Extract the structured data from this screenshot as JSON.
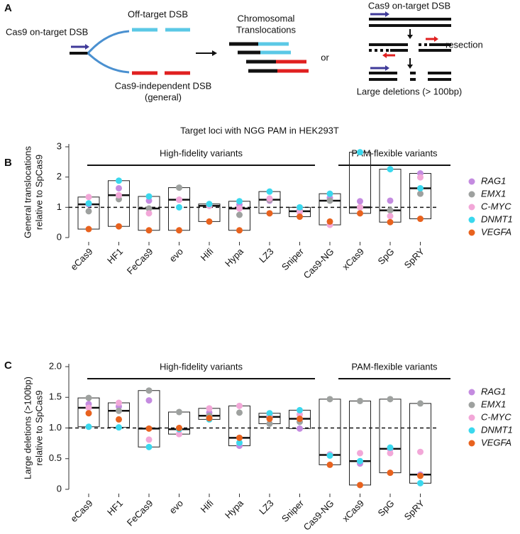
{
  "panel_a": {
    "label": "A",
    "on_target": "Cas9 on-target DSB",
    "off_target": "Off-target DSB",
    "independent": [
      "Cas9-independent DSB",
      "(general)"
    ],
    "translocations": [
      "Chromosomal",
      "Translocations"
    ],
    "or": "or",
    "on_target_right": "Cas9 on-target DSB",
    "resection": "resection",
    "deletions": "Large deletions (> 100bp)"
  },
  "subtitle": "Target loci with NGG PAM in HEK293T",
  "chart_data": [
    {
      "type": "box_strip",
      "panel": "B",
      "ylabel": [
        "General translocations",
        "relative to SpCas9"
      ],
      "groups": [
        "High-fidelity variants",
        "PAM-flexible variants"
      ],
      "categories": [
        "eCas9",
        "HF1",
        "FeCas9",
        "evo",
        "Hifi",
        "Hypa",
        "LZ3",
        "Sniper",
        "Cas9-NG",
        "xCas9",
        "SpG",
        "SpRY"
      ],
      "series": [
        {
          "name": "RAG1",
          "color": "#c48be0",
          "values": [
            1.1,
            1.63,
            1.22,
            1.25,
            1.05,
            1.09,
            1.22,
            0.9,
            1.31,
            1.2,
            1.22,
            2.12
          ]
        },
        {
          "name": "EMX1",
          "color": "#9ea19f",
          "values": [
            0.87,
            1.27,
            0.96,
            1.65,
            1.05,
            0.75,
            1.25,
            0.87,
            1.22,
            1.0,
            0.9,
            1.45
          ]
        },
        {
          "name": "C-MYC",
          "color": "#f2a7d8",
          "values": [
            1.34,
            1.4,
            0.8,
            1.25,
            1.05,
            0.96,
            1.29,
            0.84,
            0.42,
            1.0,
            0.71,
            1.99
          ]
        },
        {
          "name": "DNMT1",
          "color": "#3ad8ee",
          "values": [
            1.13,
            1.88,
            1.36,
            1.0,
            1.11,
            1.2,
            1.52,
            1.0,
            1.45,
            2.82,
            2.26,
            1.63
          ]
        },
        {
          "name": "VEGFA",
          "color": "#e8621e",
          "values": [
            0.28,
            0.37,
            0.24,
            0.24,
            0.53,
            0.24,
            0.8,
            0.69,
            0.53,
            0.8,
            0.51,
            0.62
          ]
        }
      ],
      "ylim": [
        0,
        3
      ],
      "yticks": [
        0,
        1,
        2,
        3
      ],
      "reference_line": 1
    },
    {
      "type": "box_strip",
      "panel": "C",
      "ylabel": [
        "Large deletions (>100bp)",
        "relative to SpCas9"
      ],
      "groups": [
        "High-fidelity variants",
        "PAM-flexible variants"
      ],
      "categories": [
        "eCas9",
        "HF1",
        "FeCas9",
        "evo",
        "Hifi",
        "Hypa",
        "LZ3",
        "Sniper",
        "Cas9-NG",
        "xCas9",
        "SpG",
        "SpRY"
      ],
      "series": [
        {
          "name": "RAG1",
          "color": "#c48be0",
          "values": [
            1.39,
            1.35,
            1.45,
            0.98,
            1.25,
            0.71,
            1.2,
            0.99,
            0.57,
            0.42,
            0.66,
            0.24
          ]
        },
        {
          "name": "EMX1",
          "color": "#9ea19f",
          "values": [
            1.49,
            1.28,
            1.61,
            1.26,
            1.2,
            1.25,
            1.07,
            1.1,
            1.47,
            1.44,
            1.47,
            1.4
          ]
        },
        {
          "name": "C-MYC",
          "color": "#f2a7d8",
          "values": [
            1.33,
            1.41,
            0.81,
            0.9,
            1.32,
            1.36,
            1.18,
            1.22,
            0.56,
            0.59,
            0.59,
            0.61
          ]
        },
        {
          "name": "DNMT1",
          "color": "#3ad8ee",
          "values": [
            1.02,
            1.01,
            0.69,
            0.98,
            1.14,
            0.76,
            1.24,
            1.29,
            0.55,
            0.46,
            0.68,
            0.1
          ]
        },
        {
          "name": "VEGFA",
          "color": "#e8621e",
          "values": [
            1.24,
            1.14,
            0.99,
            1.0,
            1.16,
            0.84,
            1.15,
            1.15,
            0.4,
            0.07,
            0.27,
            0.22
          ]
        }
      ],
      "ylim": [
        0,
        2
      ],
      "yticks": [
        0,
        0.5,
        {
          "value": 1,
          "label": "1.0"
        },
        1.5,
        {
          "value": 2,
          "label": "2.0"
        }
      ],
      "reference_line": 1
    }
  ]
}
